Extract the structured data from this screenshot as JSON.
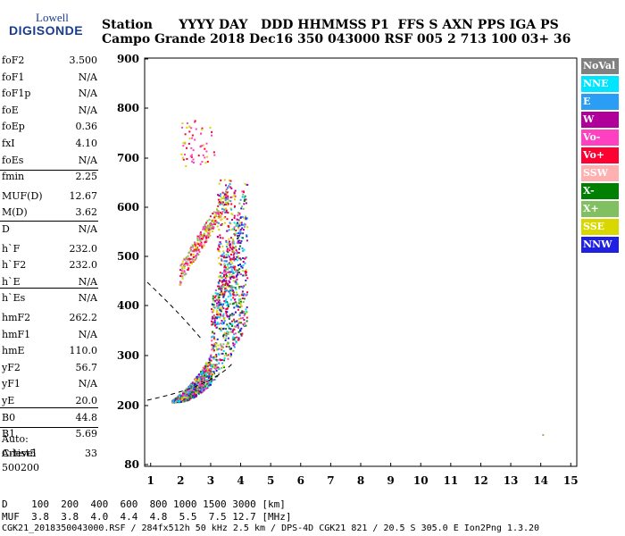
{
  "logo": {
    "line1": "Lowell",
    "line2": "DIGISONDE"
  },
  "header": {
    "row1": "Station      YYYY DAY   DDD HHMMSS P1  FFS S AXN PPS IGA PS",
    "row2": "Campo Grande 2018 Dec16 350 043000 RSF 005 2 713 100 03+ 36"
  },
  "params": [
    {
      "name": "foF2",
      "value": "3.500"
    },
    {
      "name": "foF1",
      "value": "N/A"
    },
    {
      "name": "foF1p",
      "value": "N/A"
    },
    {
      "name": "foE",
      "value": "N/A"
    },
    {
      "name": "foEp",
      "value": "0.36"
    },
    {
      "name": "fxI",
      "value": "4.10"
    },
    {
      "name": "foEs",
      "value": "N/A"
    },
    {
      "name": "fmin",
      "value": "2.25"
    },
    {
      "name": "MUF(D)",
      "value": "12.67"
    },
    {
      "name": "M(D)",
      "value": "3.62"
    },
    {
      "name": "D",
      "value": "N/A"
    },
    {
      "name": "h`F",
      "value": "232.0"
    },
    {
      "name": "h`F2",
      "value": "232.0"
    },
    {
      "name": "h`E",
      "value": "N/A"
    },
    {
      "name": "h`Es",
      "value": "N/A"
    },
    {
      "name": "hmF2",
      "value": "262.2"
    },
    {
      "name": "hmF1",
      "value": "N/A"
    },
    {
      "name": "hmE",
      "value": "110.0"
    },
    {
      "name": "yF2",
      "value": "56.7"
    },
    {
      "name": "yF1",
      "value": "N/A"
    },
    {
      "name": "yE",
      "value": "20.0"
    },
    {
      "name": "B0",
      "value": "44.8"
    },
    {
      "name": "B1",
      "value": "5.69"
    },
    {
      "name": "C-level",
      "value": "33"
    }
  ],
  "auto": {
    "line1": "Auto:",
    "line2": "Artist5",
    "line3": "500200"
  },
  "legend": [
    {
      "label": "NoVal",
      "bg": "#808080",
      "fg": "#ffffff"
    },
    {
      "label": "NNE",
      "bg": "#00e5ff",
      "fg": "#ffffff"
    },
    {
      "label": "E",
      "bg": "#2a9df4",
      "fg": "#ffffff"
    },
    {
      "label": "W",
      "bg": "#b0009a",
      "fg": "#ffffff"
    },
    {
      "label": "Vo-",
      "bg": "#ff40c0",
      "fg": "#ffffff"
    },
    {
      "label": "Vo+",
      "bg": "#ff0033",
      "fg": "#ffffff"
    },
    {
      "label": "SSW",
      "bg": "#ffb0b0",
      "fg": "#ffffff"
    },
    {
      "label": "X-",
      "bg": "#008000",
      "fg": "#ffffff"
    },
    {
      "label": "X+",
      "bg": "#80c060",
      "fg": "#ffffff"
    },
    {
      "label": "SSE",
      "bg": "#d8d800",
      "fg": "#ffffff"
    },
    {
      "label": "NNW",
      "bg": "#2020e0",
      "fg": "#ffffff"
    }
  ],
  "footer": {
    "line1": "D    100  200  400  600  800 1000 1500 3000 [km]",
    "line2": "MUF  3.8  3.8  4.0  4.4  4.8  5.5  7.5 12.7 [MHz]",
    "line3": "CGK21_2018350043000.RSF / 284fx512h 50 kHz 2.5 km / DPS-4D CGK21 821 / 20.5 S 305.0 E Ion2Png 1.3.20"
  },
  "chart_data": {
    "type": "scatter",
    "x_ticks": [
      1,
      2,
      3,
      4,
      5,
      6,
      7,
      8,
      9,
      10,
      11,
      12,
      13,
      14,
      15
    ],
    "y_ticks": [
      80,
      200,
      300,
      400,
      500,
      600,
      700,
      800,
      900
    ],
    "xlim": [
      0.8,
      15.2
    ],
    "ylim": [
      80,
      900
    ],
    "clusters": [
      {
        "name": "F-trace main",
        "color": "#ff0033"
      },
      {
        "name": "F-trace second hop",
        "color": "#d8d800"
      }
    ]
  }
}
